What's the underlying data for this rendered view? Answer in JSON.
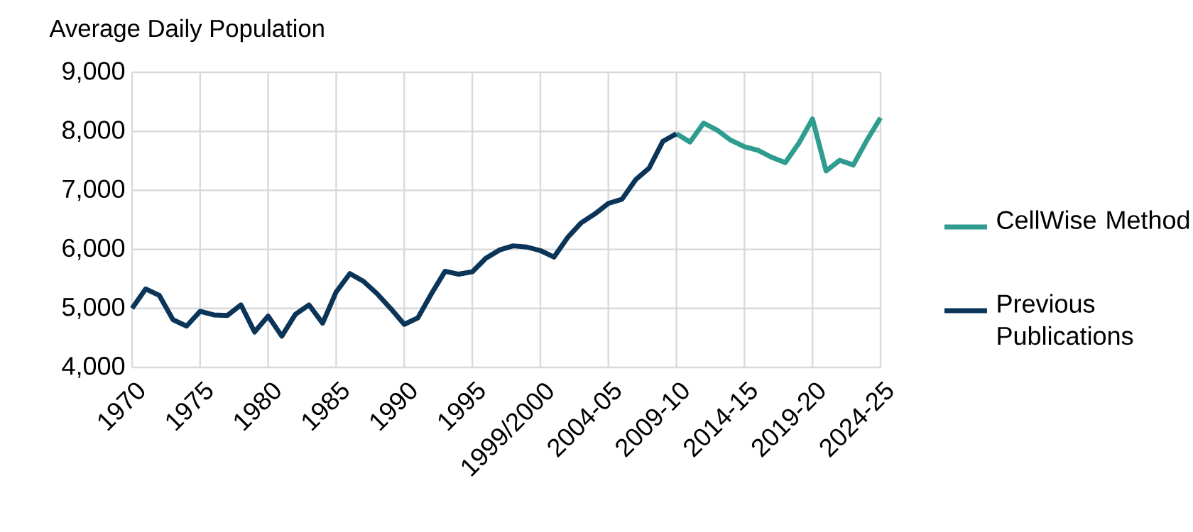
{
  "chart_data": {
    "type": "line",
    "ylabel": "Average Daily Population",
    "categories": [
      "1970",
      null,
      null,
      null,
      null,
      "1975",
      null,
      null,
      null,
      null,
      "1980",
      null,
      null,
      null,
      null,
      "1985",
      null,
      null,
      null,
      null,
      "1990",
      null,
      null,
      null,
      null,
      "1995",
      null,
      null,
      null,
      null,
      "1999/2000",
      null,
      null,
      null,
      null,
      "2004-05",
      null,
      null,
      null,
      null,
      "2009-10",
      null,
      null,
      null,
      null,
      "2014-15",
      null,
      null,
      null,
      null,
      "2019-20",
      null,
      null,
      null,
      null,
      "2024-25"
    ],
    "series": [
      {
        "name": "CellWise Method",
        "color": "#2e9c8e",
        "values": [
          null,
          null,
          null,
          null,
          null,
          null,
          null,
          null,
          null,
          null,
          null,
          null,
          null,
          null,
          null,
          null,
          null,
          null,
          null,
          null,
          null,
          null,
          null,
          null,
          null,
          null,
          null,
          null,
          null,
          null,
          null,
          null,
          null,
          null,
          null,
          null,
          null,
          null,
          null,
          null,
          7960,
          7820,
          8140,
          8020,
          7850,
          7740,
          7680,
          7560,
          7470,
          7800,
          8210,
          7330,
          7510,
          7430,
          7850,
          8230
        ]
      },
      {
        "name": "Previous Publications",
        "color": "#0b3558",
        "values": [
          5000,
          5330,
          5220,
          4810,
          4700,
          4950,
          4890,
          4880,
          5060,
          4600,
          4870,
          4530,
          4900,
          5060,
          4750,
          5280,
          5590,
          5460,
          5250,
          5000,
          4730,
          4840,
          5250,
          5630,
          5580,
          5620,
          5850,
          5990,
          6060,
          6040,
          5980,
          5870,
          6200,
          6450,
          6600,
          6780,
          6850,
          7180,
          7380,
          7830,
          7960,
          null,
          null,
          null,
          null,
          null,
          null,
          null,
          null,
          null,
          null,
          null,
          null,
          null,
          null,
          null
        ]
      }
    ],
    "ylim": [
      4000,
      9000
    ],
    "yticks": [
      {
        "value": 4000,
        "label": "4,000"
      },
      {
        "value": 5000,
        "label": "5,000"
      },
      {
        "value": 6000,
        "label": "6,000"
      },
      {
        "value": 7000,
        "label": "7,000"
      },
      {
        "value": 8000,
        "label": "8,000"
      },
      {
        "value": 9000,
        "label": "9,000"
      }
    ],
    "grid": true,
    "legend": "right"
  }
}
